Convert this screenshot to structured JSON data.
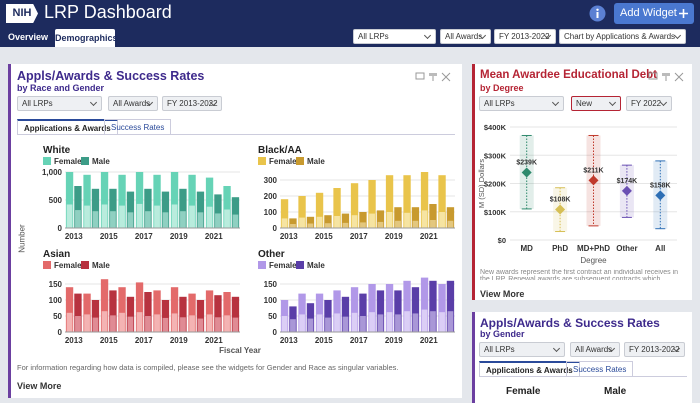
{
  "header": {
    "logo": "NIH",
    "title": "LRP Dashboard",
    "add_widget": "Add Widget"
  },
  "tabs": [
    "Overview",
    "Demographics"
  ],
  "filters": [
    "All LRPs",
    "All Awards",
    "FY 2013-2022",
    "Chart by Applications & Awards"
  ],
  "widgets": [
    {
      "title": "Appls/Awards & Success Rates",
      "subtitle": "by Race and Gender",
      "filters": [
        "All LRPs",
        "All Awards",
        "FY 2013-2022"
      ],
      "tabs": [
        "Applications & Awards",
        "Success Rates"
      ],
      "y_label": "Number",
      "x_label": "Fiscal Year",
      "charts": [
        {
          "type": "bar",
          "title": "White",
          "categories": [
            2013,
            null,
            2015,
            null,
            2017,
            null,
            2019,
            null,
            2021,
            null
          ],
          "ylim": [
            0,
            1000
          ],
          "yticks": [
            0,
            500,
            {
              "value": 1000,
              "label": "1,000"
            }
          ],
          "grid": true,
          "series": [
            {
              "name": "Female",
              "color": "#66d3b6",
              "awards_color": "#b9ecdd",
              "values": [
                1000,
                950,
                1000,
                950,
                1000,
                950,
                1000,
                950,
                900,
                750
              ],
              "awards": [
                420,
                400,
                420,
                400,
                430,
                400,
                420,
                400,
                380,
                330
              ]
            },
            {
              "name": "Male",
              "color": "#3c9c87",
              "awards_color": "#8fd0c1",
              "values": [
                750,
                700,
                700,
                650,
                700,
                650,
                700,
                650,
                600,
                550
              ],
              "awards": [
                320,
                300,
                300,
                280,
                300,
                280,
                300,
                280,
                260,
                240
              ]
            }
          ]
        },
        {
          "type": "bar",
          "title": "Black/AA",
          "categories": [
            2013,
            null,
            2015,
            null,
            2017,
            null,
            2019,
            null,
            2021,
            null
          ],
          "ylim": [
            0,
            350
          ],
          "yticks": [
            0,
            100,
            200,
            300
          ],
          "grid": true,
          "series": [
            {
              "name": "Female",
              "color": "#e9c44b",
              "awards_color": "#f6e4a2",
              "values": [
                180,
                200,
                220,
                250,
                280,
                300,
                330,
                330,
                350,
                330
              ],
              "awards": [
                60,
                65,
                70,
                75,
                80,
                90,
                100,
                95,
                110,
                100
              ]
            },
            {
              "name": "Male",
              "color": "#c89a2f",
              "awards_color": "#e3c77e",
              "values": [
                60,
                70,
                80,
                90,
                100,
                110,
                130,
                130,
                150,
                130
              ],
              "awards": [
                25,
                28,
                30,
                32,
                35,
                38,
                45,
                45,
                50,
                45
              ]
            }
          ]
        },
        {
          "type": "bar",
          "title": "Asian",
          "categories": [
            2013,
            null,
            2015,
            null,
            2017,
            null,
            2019,
            null,
            2021,
            null
          ],
          "ylim": [
            0,
            175
          ],
          "yticks": [
            0,
            50,
            100,
            150
          ],
          "grid": true,
          "series": [
            {
              "name": "Female",
              "color": "#e36a6a",
              "awards_color": "#f4b3b3",
              "values": [
                140,
                120,
                165,
                140,
                155,
                130,
                140,
                120,
                130,
                125
              ],
              "awards": [
                60,
                55,
                65,
                60,
                62,
                55,
                58,
                52,
                55,
                52
              ]
            },
            {
              "name": "Male",
              "color": "#b7323f",
              "awards_color": "#e08b94",
              "values": [
                120,
                100,
                130,
                110,
                125,
                100,
                110,
                100,
                115,
                110
              ],
              "awards": [
                50,
                45,
                52,
                48,
                50,
                44,
                46,
                42,
                46,
                45
              ]
            }
          ]
        },
        {
          "type": "bar",
          "title": "Other",
          "categories": [
            2013,
            null,
            2015,
            null,
            2017,
            null,
            2019,
            null,
            2021,
            null
          ],
          "ylim": [
            0,
            175
          ],
          "yticks": [
            0,
            50,
            100,
            150
          ],
          "grid": true,
          "series": [
            {
              "name": "Female",
              "color": "#b198e8",
              "awards_color": "#dbcef6",
              "values": [
                100,
                120,
                120,
                130,
                140,
                150,
                150,
                160,
                170,
                150
              ],
              "awards": [
                50,
                55,
                55,
                58,
                60,
                62,
                62,
                65,
                70,
                62
              ]
            },
            {
              "name": "Male",
              "color": "#5a3ea8",
              "awards_color": "#a997d7",
              "values": [
                80,
                90,
                100,
                110,
                120,
                130,
                130,
                140,
                160,
                160
              ],
              "awards": [
                40,
                42,
                45,
                48,
                50,
                55,
                55,
                58,
                65,
                65
              ]
            }
          ]
        }
      ],
      "note": "For information regarding how data is compiled, please see the widgets for Gender and Race as singular variables.",
      "view_more": "View More"
    },
    {
      "title": "Mean Awardee Educational Debt",
      "subtitle": "by Degree",
      "filters": [
        "All LRPs",
        "New",
        "FY 2022"
      ],
      "chart": {
        "type": "dot",
        "categories": [
          "MD",
          "PhD",
          "MD+PhD",
          "Other",
          "All"
        ],
        "values": [
          239000,
          108000,
          211000,
          174000,
          158000
        ],
        "value_labels": [
          "$239K",
          "$108K",
          "$211K",
          "$174K",
          "$158K"
        ],
        "low": [
          110000,
          30000,
          50000,
          80000,
          40000
        ],
        "high": [
          370000,
          185000,
          370000,
          265000,
          280000
        ],
        "colors": [
          "#2f8a6d",
          "#d6bf55",
          "#c0392b",
          "#6a4fb3",
          "#2e6fb5"
        ],
        "ylim": [
          0,
          400000
        ],
        "yticks": [
          {
            "value": 0,
            "label": "$0"
          },
          {
            "value": 100000,
            "label": "$100K"
          },
          {
            "value": 200000,
            "label": "$200K"
          },
          {
            "value": 300000,
            "label": "$300K"
          },
          {
            "value": 400000,
            "label": "$400K"
          }
        ],
        "grid": true,
        "y_label": "M (SD) Dollars",
        "x_label": "Degree"
      },
      "note": "New awards represent the first contract an individual receives in the LRP. Renewal awards are subsequent contracts which, because",
      "view_more": "View More"
    },
    {
      "title": "Appls/Awards & Success Rates",
      "subtitle": "by Gender",
      "filters": [
        "All LRPs",
        "All Awards",
        "FY 2013-2022"
      ],
      "tabs": [
        "Applications & Awards",
        "Success Rates"
      ],
      "columns": [
        "Female",
        "Male"
      ]
    }
  ]
}
